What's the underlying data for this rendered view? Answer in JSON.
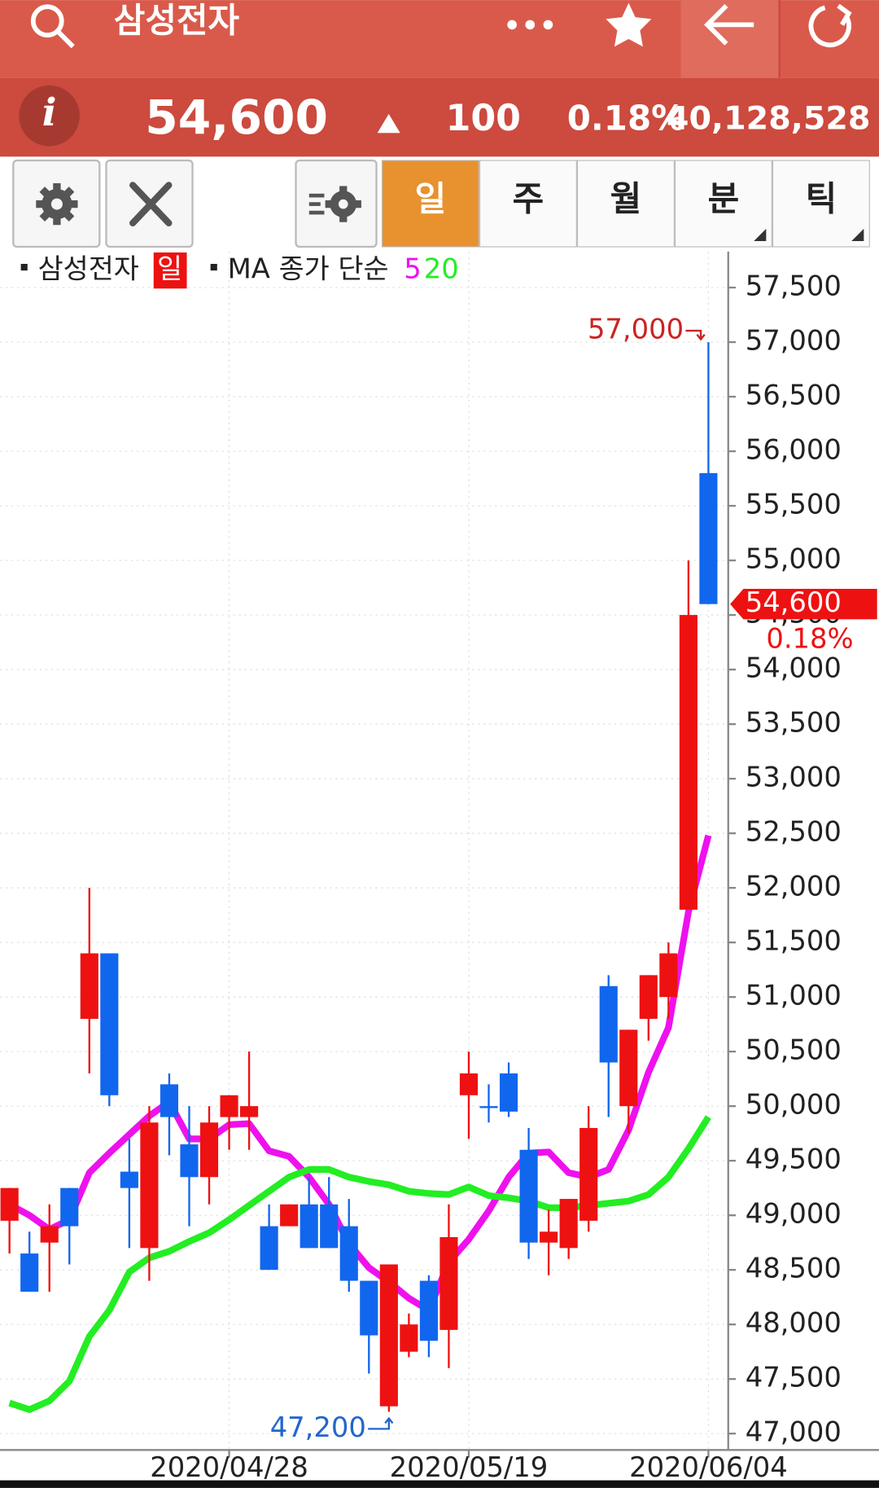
{
  "header": {
    "title": "삼성전자"
  },
  "quote": {
    "price": "54,600",
    "change": "100",
    "change_pct": "0.18%",
    "volume": "40,128,528"
  },
  "tabs": [
    "일",
    "주",
    "월",
    "분",
    "틱"
  ],
  "chart_data": {
    "type": "candlestick",
    "legend": {
      "name": "삼성전자",
      "period": "일",
      "ma_label": "MA 종가 단순"
    },
    "categories": [
      null,
      null,
      null,
      null,
      null,
      null,
      null,
      null,
      null,
      null,
      null,
      "2020/04/28",
      null,
      null,
      null,
      null,
      null,
      null,
      null,
      null,
      null,
      null,
      null,
      "2020/05/19",
      null,
      null,
      null,
      null,
      null,
      null,
      null,
      null,
      null,
      null,
      null,
      "2020/06/04"
    ],
    "open": [
      48950,
      48650,
      48750,
      49250,
      50800,
      51400,
      49400,
      48700,
      50200,
      49650,
      49350,
      49900,
      49900,
      48900,
      48900,
      49100,
      49100,
      48900,
      48400,
      47250,
      47750,
      48400,
      47950,
      50100,
      50000,
      50300,
      49600,
      48750,
      48700,
      48950,
      51100,
      50000,
      50800,
      51000,
      51800,
      55800
    ],
    "high": [
      49250,
      48850,
      49100,
      49250,
      52000,
      51400,
      49700,
      50000,
      50300,
      50000,
      50000,
      50100,
      50500,
      49100,
      49100,
      49350,
      49350,
      49150,
      48400,
      48550,
      48100,
      48450,
      49100,
      50500,
      50200,
      50400,
      49800,
      49050,
      49150,
      50000,
      51200,
      50700,
      51200,
      51500,
      55000,
      57000
    ],
    "low": [
      48650,
      48300,
      48300,
      48550,
      50300,
      50000,
      48700,
      48400,
      49550,
      48900,
      49100,
      49600,
      49600,
      48500,
      48900,
      48700,
      48700,
      48300,
      47550,
      47200,
      47700,
      47700,
      47600,
      49700,
      49850,
      49900,
      48600,
      48450,
      48600,
      48850,
      49900,
      49750,
      50600,
      50800,
      51800,
      54600
    ],
    "close": [
      49250,
      48300,
      48900,
      48900,
      51400,
      50100,
      49250,
      49850,
      49900,
      49350,
      49850,
      50100,
      50000,
      48500,
      49100,
      48700,
      48700,
      48400,
      47900,
      48550,
      48000,
      47850,
      48800,
      50300,
      50000,
      49950,
      48750,
      48850,
      49150,
      49800,
      50400,
      50700,
      51200,
      51400,
      54500,
      54600
    ],
    "up_color": "#ee1111",
    "down_color": "#1166ee",
    "series": [
      {
        "name": "5",
        "color": "#ee11ee",
        "values": [
          49100,
          49000,
          48870,
          48960,
          49390,
          49570,
          49740,
          49910,
          50040,
          49700,
          49700,
          49830,
          49840,
          49590,
          49540,
          49350,
          49100,
          48740,
          48520,
          48390,
          48240,
          48130,
          48570,
          48780,
          49040,
          49350,
          49570,
          49580,
          49390,
          49350,
          49420,
          49780,
          50310,
          50720,
          51780,
          52480
        ]
      },
      {
        "name": "20",
        "color": "#22ee22",
        "values": [
          47280,
          47220,
          47300,
          47480,
          47890,
          48130,
          48480,
          48610,
          48670,
          48760,
          48840,
          48960,
          49090,
          49220,
          49350,
          49420,
          49420,
          49350,
          49310,
          49280,
          49220,
          49200,
          49190,
          49260,
          49180,
          49160,
          49130,
          49070,
          49070,
          49090,
          49110,
          49130,
          49190,
          49350,
          49610,
          49900
        ]
      }
    ],
    "ylim": [
      46850,
      57830
    ],
    "yticks": [
      {
        "value": 47000,
        "label": "47,000"
      },
      {
        "value": 47500,
        "label": "47,500"
      },
      {
        "value": 48000,
        "label": "48,000"
      },
      {
        "value": 48500,
        "label": "48,500"
      },
      {
        "value": 49000,
        "label": "49,000"
      },
      {
        "value": 49500,
        "label": "49,500"
      },
      {
        "value": 50000,
        "label": "50,000"
      },
      {
        "value": 50500,
        "label": "50,500"
      },
      {
        "value": 51000,
        "label": "51,000"
      },
      {
        "value": 51500,
        "label": "51,500"
      },
      {
        "value": 52000,
        "label": "52,000"
      },
      {
        "value": 52500,
        "label": "52,500"
      },
      {
        "value": 53000,
        "label": "53,000"
      },
      {
        "value": 53500,
        "label": "53,500"
      },
      {
        "value": 54000,
        "label": "54,000"
      },
      {
        "value": 54500,
        "label": "54,500"
      },
      {
        "value": 55000,
        "label": "55,000"
      },
      {
        "value": 55500,
        "label": "55,500"
      },
      {
        "value": 56000,
        "label": "56,000"
      },
      {
        "value": 56500,
        "label": "56,500"
      },
      {
        "value": 57000,
        "label": "57,000"
      },
      {
        "value": 57500,
        "label": "57,500"
      }
    ],
    "grid": true,
    "high_label": {
      "value": 57000,
      "label": "57,000"
    },
    "low_label": {
      "value": 47200,
      "label": "47,200"
    },
    "last_price": {
      "value": 54600,
      "label": "54,600"
    },
    "last_change": "0.18%"
  }
}
